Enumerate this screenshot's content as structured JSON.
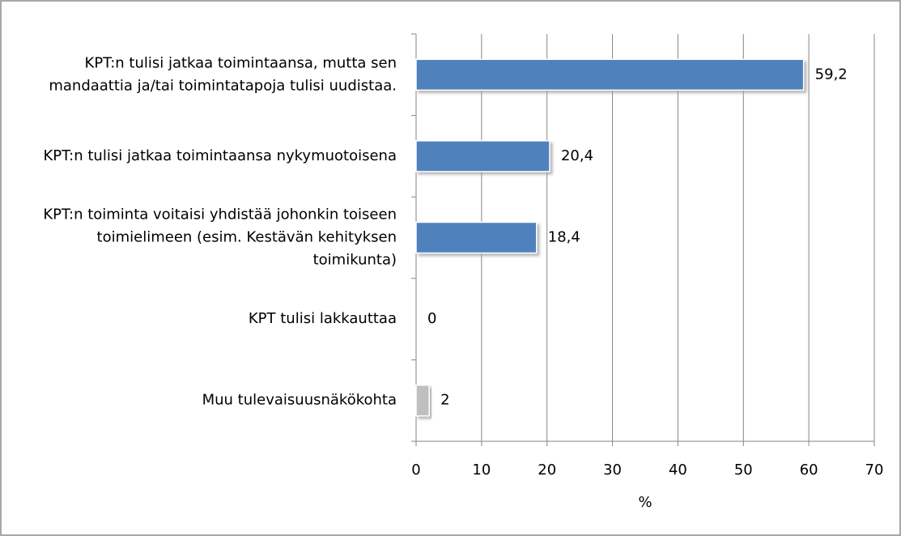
{
  "chart_data": {
    "type": "barh",
    "categories": [
      "KPT:n tulisi jatkaa toimintaansa, mutta sen mandaattia ja/tai toimintatapoja tulisi uudistaa.",
      "KPT:n tulisi jatkaa toimintaansa nykymuotoisena",
      "KPT:n toiminta voitaisi yhdistää johonkin toiseen toimielimeen (esim. Kestävän kehityksen toimikunta)",
      "KPT tulisi lakkauttaa",
      "Muu tulevaisuusnäkökohta"
    ],
    "values": [
      59.2,
      20.4,
      18.4,
      0,
      2
    ],
    "value_labels": [
      "59,2",
      "20,4",
      "18,4",
      "0",
      "2"
    ],
    "colors": [
      "#4f81bd",
      "#4f81bd",
      "#4f81bd",
      "#4f81bd",
      "#bfbfbf"
    ],
    "xlabel": "%",
    "xlim": [
      0,
      70
    ],
    "xticks": [
      0,
      10,
      20,
      30,
      40,
      50,
      60,
      70
    ],
    "grid": true
  }
}
